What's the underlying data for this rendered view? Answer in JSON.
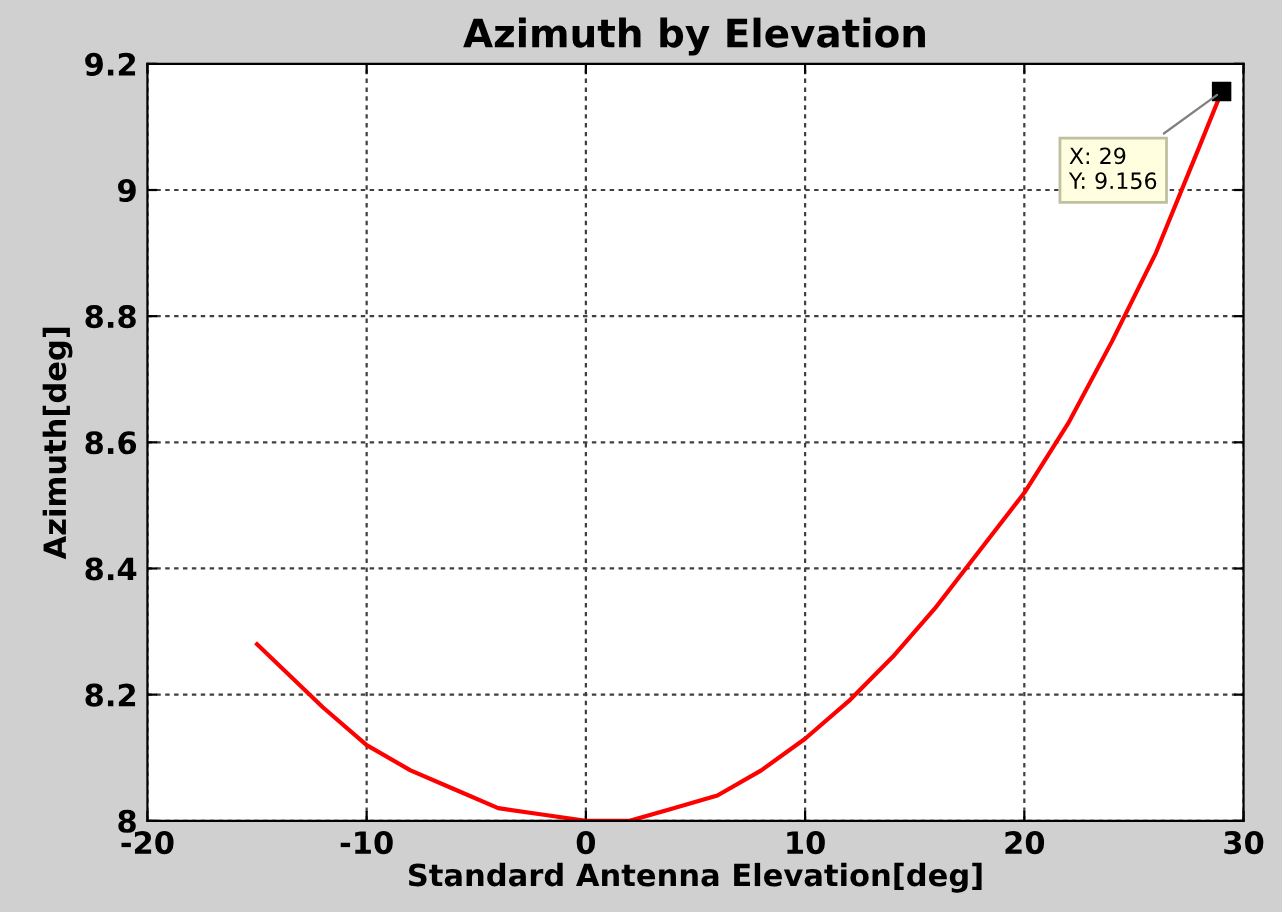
{
  "chart_data": {
    "type": "line",
    "title": "Azimuth by Elevation",
    "xlabel": "Standard Antenna Elevation[deg]",
    "ylabel": "Azimuth[deg]",
    "x": [
      -15,
      -12,
      -10,
      -8,
      -6,
      -4,
      -2,
      0,
      2,
      4,
      6,
      8,
      10,
      12,
      14,
      16,
      18,
      20,
      22,
      24,
      26,
      28,
      29
    ],
    "series": [
      {
        "color": "#ff0000",
        "values": [
          8.28,
          8.18,
          8.12,
          8.08,
          8.05,
          8.02,
          8.01,
          8.0,
          8.0,
          8.02,
          8.04,
          8.08,
          8.13,
          8.19,
          8.26,
          8.34,
          8.43,
          8.52,
          8.63,
          8.76,
          8.9,
          9.07,
          9.156
        ]
      }
    ],
    "xlim": [
      -20,
      30
    ],
    "xticks": [
      -20,
      -10,
      0,
      10,
      20,
      30
    ],
    "ylim": [
      8,
      9.2
    ],
    "yticks": [
      8,
      8.2,
      8.4,
      8.6,
      8.8,
      9,
      9.2
    ],
    "grid": true,
    "line_style": "solid",
    "marker": "none",
    "annotations": [
      {
        "text": "X: 29\nY: 9.156",
        "x": 29,
        "y": 9.156
      }
    ]
  }
}
